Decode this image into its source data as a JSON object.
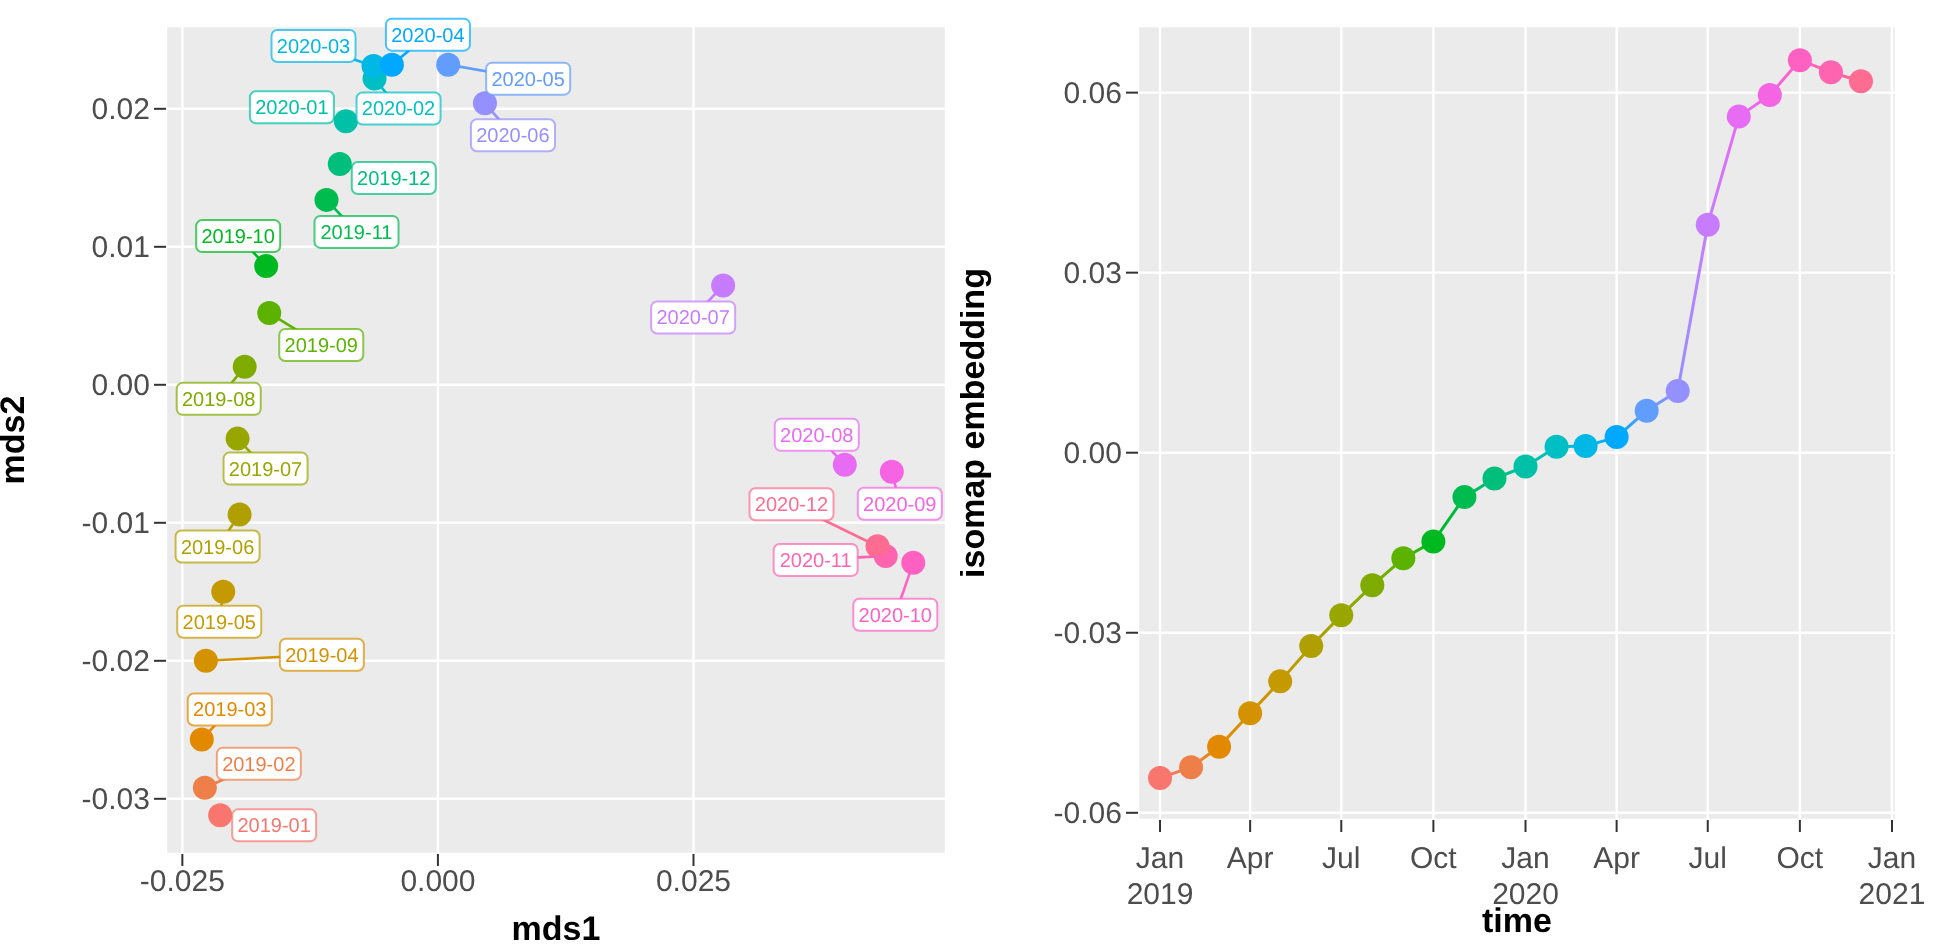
{
  "chart_data": [
    {
      "type": "scatter",
      "xlabel": "mds1",
      "ylabel": "mds2",
      "marker": "circle",
      "grid": true,
      "x": [
        -0.0213,
        -0.0228,
        -0.0231,
        -0.0227,
        -0.021,
        -0.0194,
        -0.0196,
        -0.0189,
        -0.0165,
        -0.0168,
        -0.0109,
        -0.0096,
        -0.009,
        -0.0062,
        -0.0063,
        -0.0045,
        0.001,
        0.0046,
        0.0279,
        0.0398,
        0.0444,
        0.0465,
        0.0438,
        0.043
      ],
      "values": [
        -0.0312,
        -0.0292,
        -0.0257,
        -0.02,
        -0.015,
        -0.0094,
        -0.0039,
        0.0013,
        0.0052,
        0.0086,
        0.0134,
        0.016,
        0.0191,
        0.0222,
        0.0231,
        0.0232,
        0.0232,
        0.0204,
        0.0072,
        -0.0058,
        -0.0063,
        -0.0129,
        -0.0124,
        -0.0117
      ],
      "colors": [
        "#F8766D",
        "#EF7F49",
        "#E38900",
        "#D49200",
        "#C49A00",
        "#B09F00",
        "#9AA600",
        "#7FAB00",
        "#5BB300",
        "#00B81F",
        "#00BB4E",
        "#00BF7D",
        "#00C1A7",
        "#00BFC4",
        "#00B8E5",
        "#00A9FF",
        "#619CFF",
        "#9590FF",
        "#C77CFF",
        "#E76BF3",
        "#F564E3",
        "#FF61C3",
        "#FF64B0",
        "#FF6C91"
      ],
      "xlim": [
        -0.0266,
        0.0497
      ],
      "ylim": [
        -0.034,
        0.026
      ],
      "xticks": [
        -0.025,
        {
          "value": 0,
          "label": "0.000"
        },
        0.025
      ],
      "yticks": [
        -0.03,
        -0.02,
        -0.01,
        {
          "value": 0,
          "label": "0.00"
        },
        0.01,
        0.02
      ],
      "annotations": [
        {
          "text": "2019-01",
          "x": -0.0213,
          "y": -0.0312
        },
        {
          "text": "2019-02",
          "x": -0.0228,
          "y": -0.0292
        },
        {
          "text": "2019-03",
          "x": -0.0231,
          "y": -0.0257
        },
        {
          "text": "2019-04",
          "x": -0.0227,
          "y": -0.02
        },
        {
          "text": "2019-05",
          "x": -0.021,
          "y": -0.015
        },
        {
          "text": "2019-06",
          "x": -0.0194,
          "y": -0.0094
        },
        {
          "text": "2019-07",
          "x": -0.0196,
          "y": -0.0039
        },
        {
          "text": "2019-08",
          "x": -0.0189,
          "y": 0.0013
        },
        {
          "text": "2019-09",
          "x": -0.0165,
          "y": 0.0052
        },
        {
          "text": "2019-10",
          "x": -0.0168,
          "y": 0.0086
        },
        {
          "text": "2019-11",
          "x": -0.0109,
          "y": 0.0134
        },
        {
          "text": "2019-12",
          "x": -0.0096,
          "y": 0.016
        },
        {
          "text": "2020-01",
          "x": -0.009,
          "y": 0.0191
        },
        {
          "text": "2020-02",
          "x": -0.0062,
          "y": 0.0222
        },
        {
          "text": "2020-03",
          "x": -0.0063,
          "y": 0.0231
        },
        {
          "text": "2020-04",
          "x": -0.0045,
          "y": 0.0232
        },
        {
          "text": "2020-05",
          "x": 0.001,
          "y": 0.0232
        },
        {
          "text": "2020-06",
          "x": 0.0046,
          "y": 0.0204
        },
        {
          "text": "2020-07",
          "x": 0.0279,
          "y": 0.0072
        },
        {
          "text": "2020-08",
          "x": 0.0398,
          "y": -0.0058
        },
        {
          "text": "2020-09",
          "x": 0.0444,
          "y": -0.0063
        },
        {
          "text": "2020-10",
          "x": 0.0465,
          "y": -0.0129
        },
        {
          "text": "2020-11",
          "x": 0.0438,
          "y": -0.0124
        },
        {
          "text": "2020-12",
          "x": 0.043,
          "y": -0.0117
        }
      ]
    },
    {
      "type": "line",
      "xlabel": "time",
      "ylabel": "isomap embedding",
      "marker": "circle",
      "grid": true,
      "x": [
        "2019-01",
        "2019-02",
        "2019-03",
        "2019-04",
        "2019-05",
        "2019-06",
        "2019-07",
        "2019-08",
        "2019-09",
        "2019-10",
        "2019-11",
        "2019-12",
        "2020-01",
        "2020-02",
        "2020-03",
        "2020-04",
        "2020-05",
        "2020-06",
        "2020-07",
        "2020-08",
        "2020-09",
        "2020-10",
        "2020-11",
        "2020-12"
      ],
      "values": [
        -0.0542,
        -0.0524,
        -0.049,
        -0.0434,
        -0.0381,
        -0.0322,
        -0.0271,
        -0.0221,
        -0.0176,
        -0.0148,
        -0.0074,
        -0.0043,
        -0.0023,
        0.001,
        0.0011,
        0.0026,
        0.007,
        0.0103,
        0.038,
        0.056,
        0.0596,
        0.0654,
        0.0634,
        0.0619
      ],
      "colors": [
        "#F8766D",
        "#EF7F49",
        "#E38900",
        "#D49200",
        "#C49A00",
        "#B09F00",
        "#9AA600",
        "#7FAB00",
        "#5BB300",
        "#00B81F",
        "#00BB4E",
        "#00BF7D",
        "#00C1A7",
        "#00BFC4",
        "#00B8E5",
        "#00A9FF",
        "#619CFF",
        "#9590FF",
        "#C77CFF",
        "#E76BF3",
        "#F564E3",
        "#FF61C3",
        "#FF64B0",
        "#FF6C91"
      ],
      "xlim": [
        "2018-12-10",
        "2021-01-05"
      ],
      "ylim": [
        -0.0612,
        0.0711
      ],
      "xticks": [
        {
          "value": "2019-01",
          "label": "Jan\n2019"
        },
        {
          "value": "2019-04",
          "label": "Apr"
        },
        {
          "value": "2019-07",
          "label": "Jul"
        },
        {
          "value": "2019-10",
          "label": "Oct"
        },
        {
          "value": "2020-01",
          "label": "Jan\n2020"
        },
        {
          "value": "2020-04",
          "label": "Apr"
        },
        {
          "value": "2020-07",
          "label": "Jul"
        },
        {
          "value": "2020-10",
          "label": "Oct"
        },
        {
          "value": "2021-01",
          "label": "Jan\n2021"
        }
      ],
      "yticks": [
        -0.06,
        -0.03,
        {
          "value": 0,
          "label": "0.00"
        },
        0.03,
        0.06
      ]
    }
  ]
}
